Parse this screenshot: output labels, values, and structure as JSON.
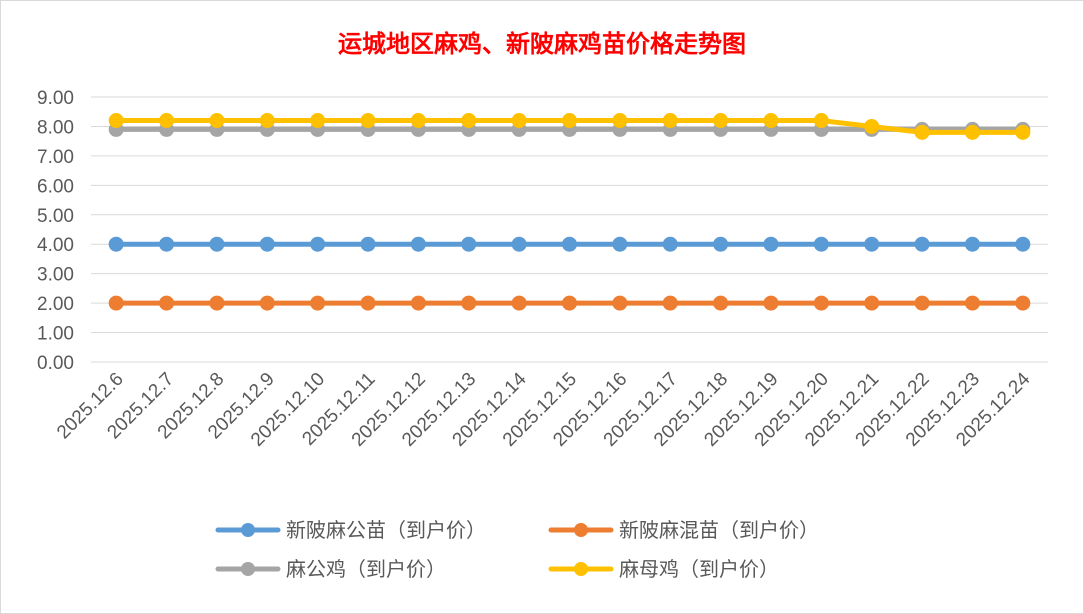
{
  "chart_data": {
    "type": "line",
    "title": "运城地区麻鸡、新陂麻鸡苗价格走势图",
    "xlabel": "",
    "ylabel": "",
    "ylim": [
      0,
      9
    ],
    "yticks": [
      "0.00",
      "1.00",
      "2.00",
      "3.00",
      "4.00",
      "5.00",
      "6.00",
      "7.00",
      "8.00",
      "9.00"
    ],
    "grid": true,
    "legend_position": "bottom",
    "categories": [
      "2025.12.6",
      "2025.12.7",
      "2025.12.8",
      "2025.12.9",
      "2025.12.10",
      "2025.12.11",
      "2025.12.12",
      "2025.12.13",
      "2025.12.14",
      "2025.12.15",
      "2025.12.16",
      "2025.12.17",
      "2025.12.18",
      "2025.12.19",
      "2025.12.20",
      "2025.12.21",
      "2025.12.22",
      "2025.12.23",
      "2025.12.24"
    ],
    "series": [
      {
        "name": "新陂麻公苗（到户价）",
        "color": "#5b9bd5",
        "values": [
          4.0,
          4.0,
          4.0,
          4.0,
          4.0,
          4.0,
          4.0,
          4.0,
          4.0,
          4.0,
          4.0,
          4.0,
          4.0,
          4.0,
          4.0,
          4.0,
          4.0,
          4.0,
          4.0
        ]
      },
      {
        "name": "新陂麻混苗（到户价）",
        "color": "#ed7d31",
        "values": [
          2.0,
          2.0,
          2.0,
          2.0,
          2.0,
          2.0,
          2.0,
          2.0,
          2.0,
          2.0,
          2.0,
          2.0,
          2.0,
          2.0,
          2.0,
          2.0,
          2.0,
          2.0,
          2.0
        ]
      },
      {
        "name": "麻公鸡（到户价）",
        "color": "#a5a5a5",
        "values": [
          7.9,
          7.9,
          7.9,
          7.9,
          7.9,
          7.9,
          7.9,
          7.9,
          7.9,
          7.9,
          7.9,
          7.9,
          7.9,
          7.9,
          7.9,
          7.9,
          7.9,
          7.9,
          7.9
        ]
      },
      {
        "name": "麻母鸡（到户价）",
        "color": "#ffc000",
        "values": [
          8.2,
          8.2,
          8.2,
          8.2,
          8.2,
          8.2,
          8.2,
          8.2,
          8.2,
          8.2,
          8.2,
          8.2,
          8.2,
          8.2,
          8.2,
          8.0,
          7.8,
          7.8,
          7.8
        ]
      }
    ]
  }
}
